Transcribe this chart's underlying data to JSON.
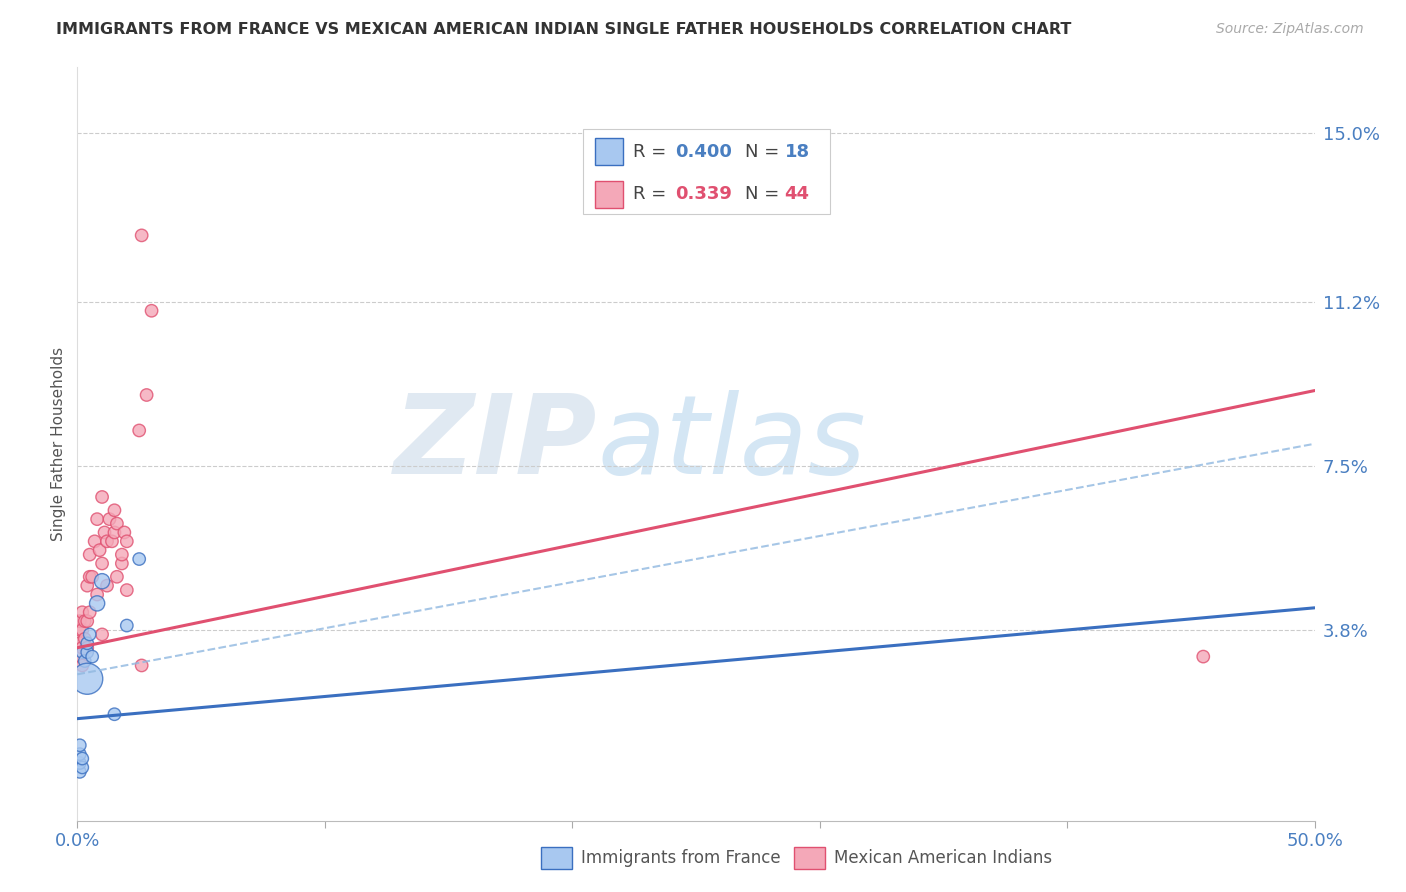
{
  "title": "IMMIGRANTS FROM FRANCE VS MEXICAN AMERICAN INDIAN SINGLE FATHER HOUSEHOLDS CORRELATION CHART",
  "source": "Source: ZipAtlas.com",
  "ylabel": "Single Father Households",
  "xlim": [
    0.0,
    0.5
  ],
  "ylim": [
    -0.005,
    0.165
  ],
  "yticks": [
    0.038,
    0.075,
    0.112,
    0.15
  ],
  "ytick_labels": [
    "3.8%",
    "7.5%",
    "11.2%",
    "15.0%"
  ],
  "xticks": [
    0.0,
    0.1,
    0.2,
    0.3,
    0.4,
    0.5
  ],
  "xtick_labels": [
    "0.0%",
    "",
    "",
    "",
    "",
    "50.0%"
  ],
  "color_blue": "#a8c8f0",
  "color_pink": "#f4a8b8",
  "color_blue_line": "#3a6fc0",
  "color_pink_line": "#e05070",
  "color_blue_dashed": "#90b8e0",
  "watermark_zip": "ZIP",
  "watermark_atlas": "atlas",
  "pink_line_x": [
    0.0,
    0.5
  ],
  "pink_line_y": [
    0.034,
    0.092
  ],
  "blue_solid_line_x": [
    0.0,
    0.5
  ],
  "blue_solid_line_y": [
    0.018,
    0.043
  ],
  "blue_dashed_line_x": [
    0.0,
    0.5
  ],
  "blue_dashed_line_y": [
    0.028,
    0.08
  ],
  "blue_points": [
    [
      0.001,
      0.006
    ],
    [
      0.001,
      0.008
    ],
    [
      0.001,
      0.01
    ],
    [
      0.001,
      0.012
    ],
    [
      0.002,
      0.007
    ],
    [
      0.002,
      0.009
    ],
    [
      0.002,
      0.033
    ],
    [
      0.003,
      0.031
    ],
    [
      0.004,
      0.027
    ],
    [
      0.004,
      0.033
    ],
    [
      0.004,
      0.035
    ],
    [
      0.005,
      0.037
    ],
    [
      0.006,
      0.032
    ],
    [
      0.008,
      0.044
    ],
    [
      0.01,
      0.049
    ],
    [
      0.015,
      0.019
    ],
    [
      0.02,
      0.039
    ],
    [
      0.025,
      0.054
    ]
  ],
  "blue_sizes": [
    80,
    80,
    80,
    80,
    80,
    80,
    80,
    80,
    500,
    80,
    80,
    80,
    80,
    120,
    120,
    80,
    80,
    80
  ],
  "pink_points": [
    [
      0.001,
      0.032
    ],
    [
      0.001,
      0.035
    ],
    [
      0.001,
      0.038
    ],
    [
      0.001,
      0.04
    ],
    [
      0.002,
      0.03
    ],
    [
      0.002,
      0.034
    ],
    [
      0.002,
      0.038
    ],
    [
      0.002,
      0.042
    ],
    [
      0.003,
      0.036
    ],
    [
      0.003,
      0.04
    ],
    [
      0.004,
      0.034
    ],
    [
      0.004,
      0.04
    ],
    [
      0.004,
      0.048
    ],
    [
      0.005,
      0.042
    ],
    [
      0.005,
      0.05
    ],
    [
      0.005,
      0.055
    ],
    [
      0.006,
      0.05
    ],
    [
      0.007,
      0.058
    ],
    [
      0.008,
      0.046
    ],
    [
      0.008,
      0.063
    ],
    [
      0.009,
      0.056
    ],
    [
      0.01,
      0.037
    ],
    [
      0.01,
      0.053
    ],
    [
      0.01,
      0.068
    ],
    [
      0.011,
      0.06
    ],
    [
      0.012,
      0.048
    ],
    [
      0.012,
      0.058
    ],
    [
      0.013,
      0.063
    ],
    [
      0.014,
      0.058
    ],
    [
      0.015,
      0.06
    ],
    [
      0.015,
      0.065
    ],
    [
      0.016,
      0.05
    ],
    [
      0.016,
      0.062
    ],
    [
      0.018,
      0.053
    ],
    [
      0.018,
      0.055
    ],
    [
      0.019,
      0.06
    ],
    [
      0.02,
      0.047
    ],
    [
      0.02,
      0.058
    ],
    [
      0.025,
      0.083
    ],
    [
      0.026,
      0.03
    ],
    [
      0.026,
      0.127
    ],
    [
      0.028,
      0.091
    ],
    [
      0.03,
      0.11
    ],
    [
      0.455,
      0.032
    ]
  ],
  "pink_sizes": [
    80,
    80,
    80,
    80,
    80,
    80,
    80,
    80,
    80,
    80,
    80,
    80,
    80,
    80,
    80,
    80,
    80,
    80,
    80,
    80,
    80,
    80,
    80,
    80,
    80,
    80,
    80,
    80,
    80,
    80,
    80,
    80,
    80,
    80,
    80,
    80,
    80,
    80,
    80,
    80,
    80,
    80,
    80,
    80
  ]
}
